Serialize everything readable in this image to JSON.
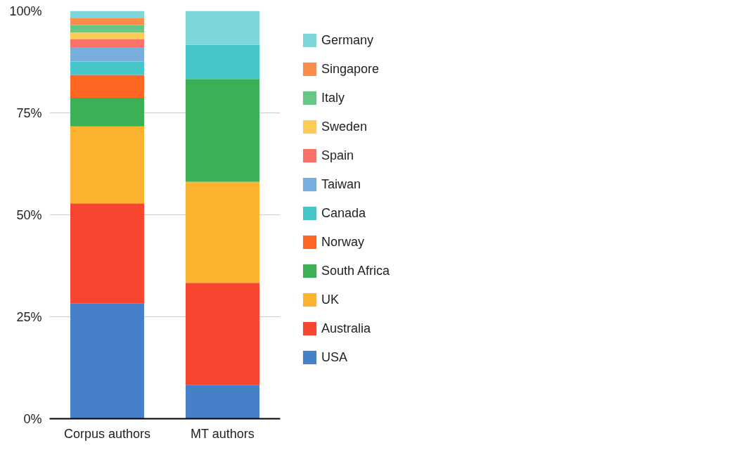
{
  "chart_data": {
    "type": "bar",
    "stacked": true,
    "categories": [
      "Corpus authors",
      "MT authors"
    ],
    "ylim": [
      0,
      100
    ],
    "yticks": [
      {
        "value": 0,
        "label": "0%"
      },
      {
        "value": 25,
        "label": "25%"
      },
      {
        "value": 50,
        "label": "50%"
      },
      {
        "value": 75,
        "label": "75%"
      },
      {
        "value": 100,
        "label": "100%"
      }
    ],
    "grid": "y",
    "legend": "right",
    "series": [
      {
        "name": "USA",
        "color": "#4580c8",
        "values": [
          28.3,
          8.3
        ]
      },
      {
        "name": "Australia",
        "color": "#f7452f",
        "values": [
          24.5,
          25
        ]
      },
      {
        "name": "UK",
        "color": "#fcb430",
        "values": [
          18.9,
          24.8
        ]
      },
      {
        "name": "South Africa",
        "color": "#3bb054",
        "values": [
          7.0,
          25.2
        ]
      },
      {
        "name": "Norway",
        "color": "#fd6721",
        "values": [
          5.6,
          null
        ]
      },
      {
        "name": "Canada",
        "color": "#47c6c9",
        "values": [
          3.3,
          8.4
        ]
      },
      {
        "name": "Taiwan",
        "color": "#77aedd",
        "values": [
          3.5,
          null
        ]
      },
      {
        "name": "Spain",
        "color": "#fc706a",
        "values": [
          2.0,
          null
        ]
      },
      {
        "name": "Sweden",
        "color": "#fdcc55",
        "values": [
          1.6,
          null
        ]
      },
      {
        "name": "Italy",
        "color": "#66c786",
        "values": [
          1.8,
          null
        ]
      },
      {
        "name": "Singapore",
        "color": "#fc8c4a",
        "values": [
          1.7,
          null
        ]
      },
      {
        "name": "Germany",
        "color": "#7dd7d8",
        "values": [
          1.8,
          8.3
        ]
      }
    ]
  }
}
